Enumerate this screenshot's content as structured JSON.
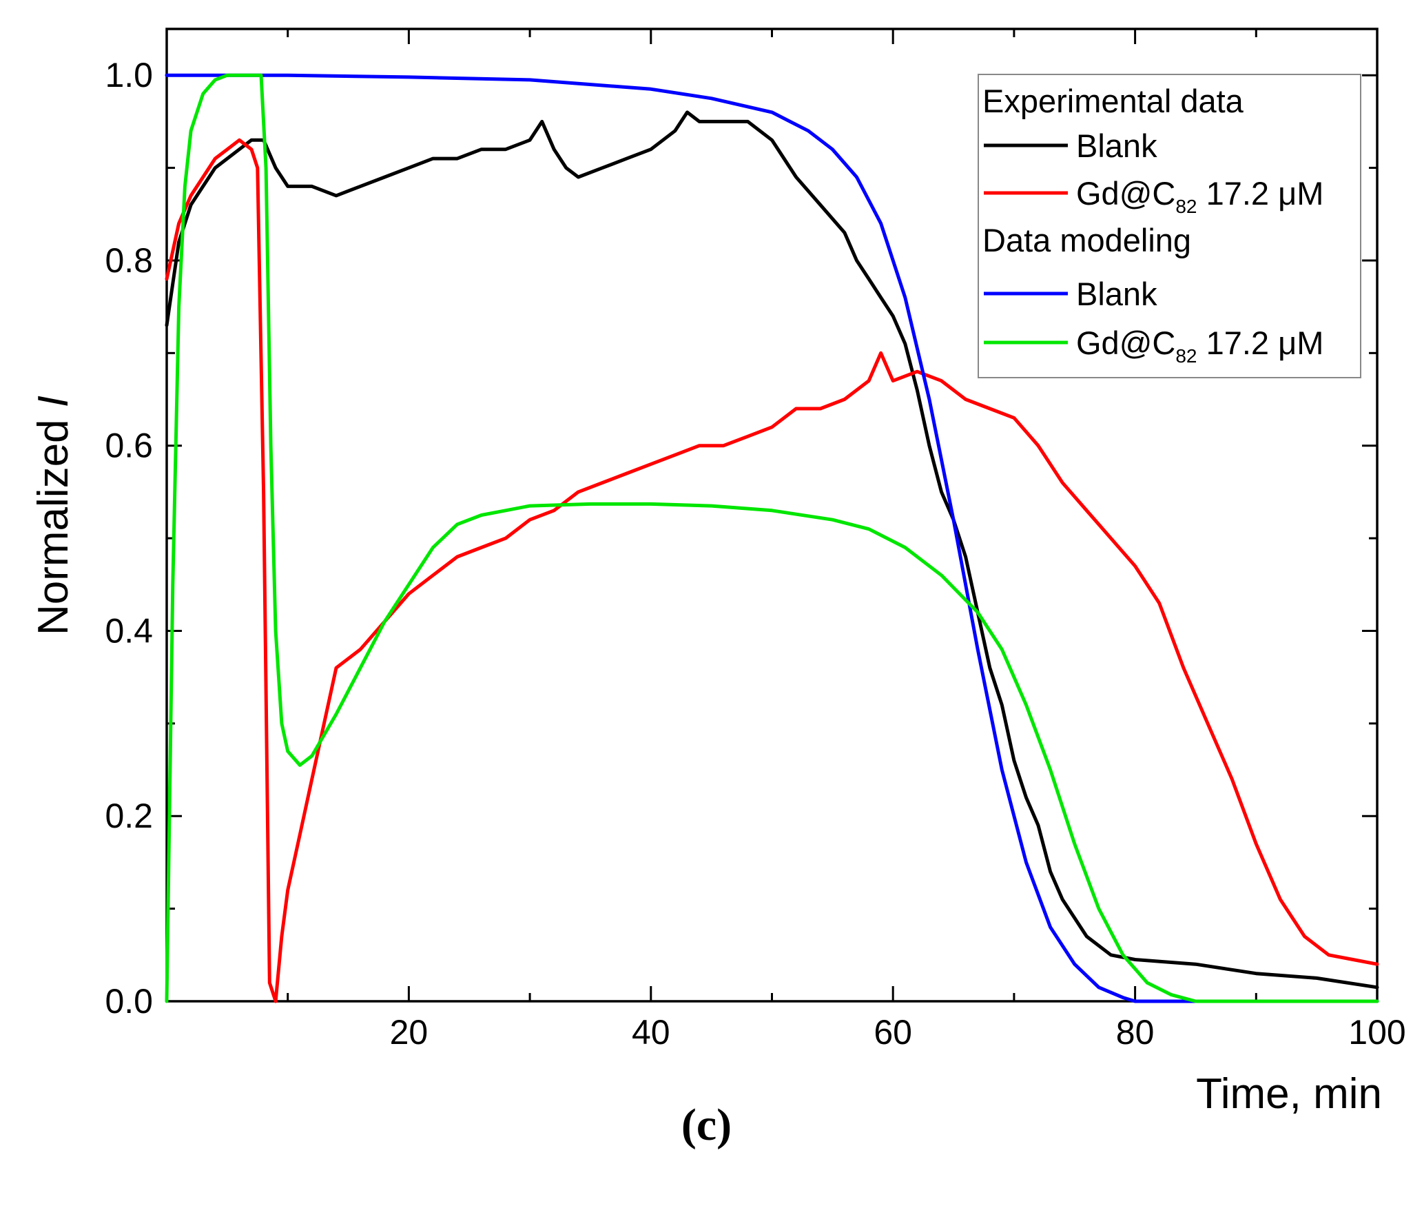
{
  "caption": "(c)",
  "chart_data": {
    "type": "line",
    "title": "",
    "xlabel": "Time, min",
    "ylabel_prefix": "Normalized ",
    "ylabel_var": "I",
    "xlim": [
      0,
      100
    ],
    "ylim": [
      0,
      1.05
    ],
    "xticks": [
      20,
      40,
      60,
      80,
      100
    ],
    "yticks": [
      0.0,
      0.2,
      0.4,
      0.6,
      0.8,
      1.0
    ],
    "ytick_labels": [
      "0.0",
      "0.2",
      "0.4",
      "0.6",
      "0.8",
      "1.0"
    ],
    "grid": false,
    "legend_position": "top-right",
    "legend": {
      "group1_title": "Experimental data",
      "group2_title": "Data modeling",
      "blank_label": "Blank",
      "gd_prefix": "Gd@C",
      "gd_subscript": "82",
      "gd_suffix": " 17.2 μM"
    },
    "series": [
      {
        "name": "Blank (experimental)",
        "group": "Experimental data",
        "color": "#000000",
        "x": [
          0,
          1,
          2,
          3,
          4,
          5,
          6,
          7,
          8,
          9,
          10,
          12,
          14,
          16,
          18,
          20,
          22,
          24,
          26,
          28,
          30,
          31,
          32,
          33,
          34,
          36,
          38,
          40,
          42,
          43,
          44,
          46,
          48,
          50,
          52,
          54,
          56,
          57,
          58,
          59,
          60,
          61,
          62,
          63,
          64,
          65,
          66,
          67,
          68,
          69,
          70,
          71,
          72,
          73,
          74,
          75,
          76,
          78,
          80,
          85,
          90,
          95,
          100
        ],
        "y": [
          0.73,
          0.82,
          0.86,
          0.88,
          0.9,
          0.91,
          0.92,
          0.93,
          0.93,
          0.9,
          0.88,
          0.88,
          0.87,
          0.88,
          0.89,
          0.9,
          0.91,
          0.91,
          0.92,
          0.92,
          0.93,
          0.95,
          0.92,
          0.9,
          0.89,
          0.9,
          0.91,
          0.92,
          0.94,
          0.96,
          0.95,
          0.95,
          0.95,
          0.93,
          0.89,
          0.86,
          0.83,
          0.8,
          0.78,
          0.76,
          0.74,
          0.71,
          0.66,
          0.6,
          0.55,
          0.52,
          0.48,
          0.42,
          0.36,
          0.32,
          0.26,
          0.22,
          0.19,
          0.14,
          0.11,
          0.09,
          0.07,
          0.05,
          0.045,
          0.04,
          0.03,
          0.025,
          0.015
        ]
      },
      {
        "name": "Gd@C82 17.2 μM (experimental)",
        "group": "Experimental data",
        "color": "#ff0000",
        "x": [
          0,
          1,
          2,
          3,
          4,
          5,
          6,
          7,
          7.5,
          8,
          8.5,
          9,
          9.5,
          10,
          11,
          12,
          13,
          14,
          16,
          18,
          20,
          22,
          24,
          26,
          28,
          30,
          32,
          34,
          36,
          38,
          40,
          42,
          44,
          46,
          48,
          50,
          52,
          54,
          56,
          58,
          59,
          60,
          62,
          64,
          66,
          68,
          70,
          72,
          74,
          76,
          78,
          80,
          82,
          84,
          86,
          88,
          90,
          92,
          94,
          96,
          98,
          100
        ],
        "y": [
          0.78,
          0.84,
          0.87,
          0.89,
          0.91,
          0.92,
          0.93,
          0.92,
          0.9,
          0.55,
          0.02,
          0.0,
          0.07,
          0.12,
          0.18,
          0.24,
          0.3,
          0.36,
          0.38,
          0.41,
          0.44,
          0.46,
          0.48,
          0.49,
          0.5,
          0.52,
          0.53,
          0.55,
          0.56,
          0.57,
          0.58,
          0.59,
          0.6,
          0.6,
          0.61,
          0.62,
          0.64,
          0.64,
          0.65,
          0.67,
          0.7,
          0.67,
          0.68,
          0.67,
          0.65,
          0.64,
          0.63,
          0.6,
          0.56,
          0.53,
          0.5,
          0.47,
          0.43,
          0.36,
          0.3,
          0.24,
          0.17,
          0.11,
          0.07,
          0.05,
          0.045,
          0.04
        ]
      },
      {
        "name": "Blank (model)",
        "group": "Data modeling",
        "color": "#0000ff",
        "x": [
          0,
          10,
          20,
          30,
          40,
          45,
          50,
          53,
          55,
          57,
          59,
          61,
          63,
          65,
          67,
          69,
          71,
          73,
          75,
          77,
          79,
          80,
          85,
          90,
          100
        ],
        "y": [
          1.0,
          1.0,
          0.998,
          0.995,
          0.985,
          0.975,
          0.96,
          0.94,
          0.92,
          0.89,
          0.84,
          0.76,
          0.65,
          0.52,
          0.38,
          0.25,
          0.15,
          0.08,
          0.04,
          0.015,
          0.004,
          0.0,
          0.0,
          0.0,
          0.0
        ]
      },
      {
        "name": "Gd@C82 17.2 μM (model)",
        "group": "Data modeling",
        "color": "#00e600",
        "x": [
          0,
          0.5,
          1,
          1.5,
          2,
          3,
          4,
          5,
          6,
          7,
          7.8,
          8.2,
          8.6,
          9,
          9.5,
          10,
          11,
          12,
          14,
          16,
          18,
          20,
          22,
          24,
          26,
          28,
          30,
          35,
          40,
          45,
          50,
          55,
          58,
          61,
          64,
          67,
          69,
          71,
          73,
          75,
          77,
          79,
          81,
          83,
          85,
          90,
          100
        ],
        "y": [
          0.0,
          0.45,
          0.75,
          0.88,
          0.94,
          0.98,
          0.995,
          1.0,
          1.0,
          1.0,
          1.0,
          0.9,
          0.6,
          0.4,
          0.3,
          0.27,
          0.255,
          0.265,
          0.31,
          0.36,
          0.41,
          0.45,
          0.49,
          0.515,
          0.525,
          0.53,
          0.535,
          0.537,
          0.537,
          0.535,
          0.53,
          0.52,
          0.51,
          0.49,
          0.46,
          0.42,
          0.38,
          0.32,
          0.25,
          0.17,
          0.1,
          0.05,
          0.02,
          0.007,
          0.0,
          0.0,
          0.0
        ]
      }
    ]
  }
}
